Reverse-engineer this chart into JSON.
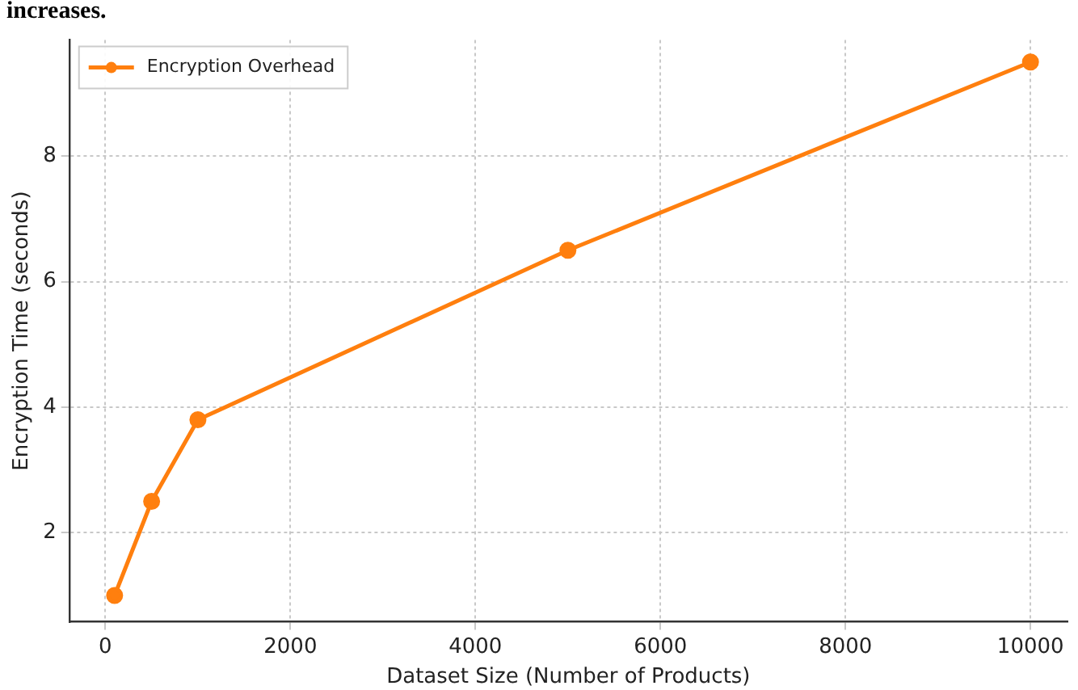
{
  "chart_data": {
    "type": "line",
    "xlabel": "Dataset Size (Number of Products)",
    "ylabel": "Encryption Time (seconds)",
    "annotations": [
      "increases."
    ],
    "x": [
      100,
      500,
      1000,
      5000,
      10000
    ],
    "series": [
      {
        "name": "Encryption Overhead",
        "color": "#ff7f0e",
        "values": [
          1.0,
          2.5,
          3.8,
          6.5,
          9.5
        ]
      }
    ],
    "xlim": [
      -390,
      10400
    ],
    "xticks": [
      0,
      2000,
      4000,
      6000,
      8000,
      10000
    ],
    "ylim": [
      0.58,
      9.85
    ],
    "yticks": [
      2,
      4,
      6,
      8
    ],
    "grid": true,
    "legend": "top left",
    "marker": "circle",
    "line_style": "solid"
  }
}
